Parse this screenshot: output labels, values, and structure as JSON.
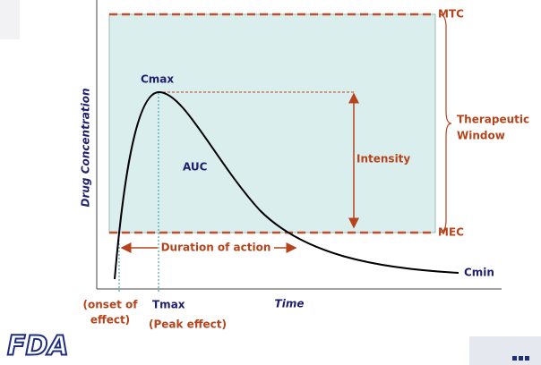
{
  "diagram": {
    "y_axis_label": "Drug Concentration",
    "x_axis_label": "Time",
    "mtc": "MTC",
    "mec": "MEC",
    "therapeutic_window": [
      "Therapeutic",
      "Window"
    ],
    "cmax": "Cmax",
    "auc": "AUC",
    "intensity": "Intensity",
    "duration": "Duration of action",
    "cmin": "Cmin",
    "onset": [
      "(onset of",
      "effect)"
    ],
    "tmax": "Tmax",
    "peak_effect": "(Peak effect)"
  },
  "footer": {
    "logo": "FDA"
  }
}
